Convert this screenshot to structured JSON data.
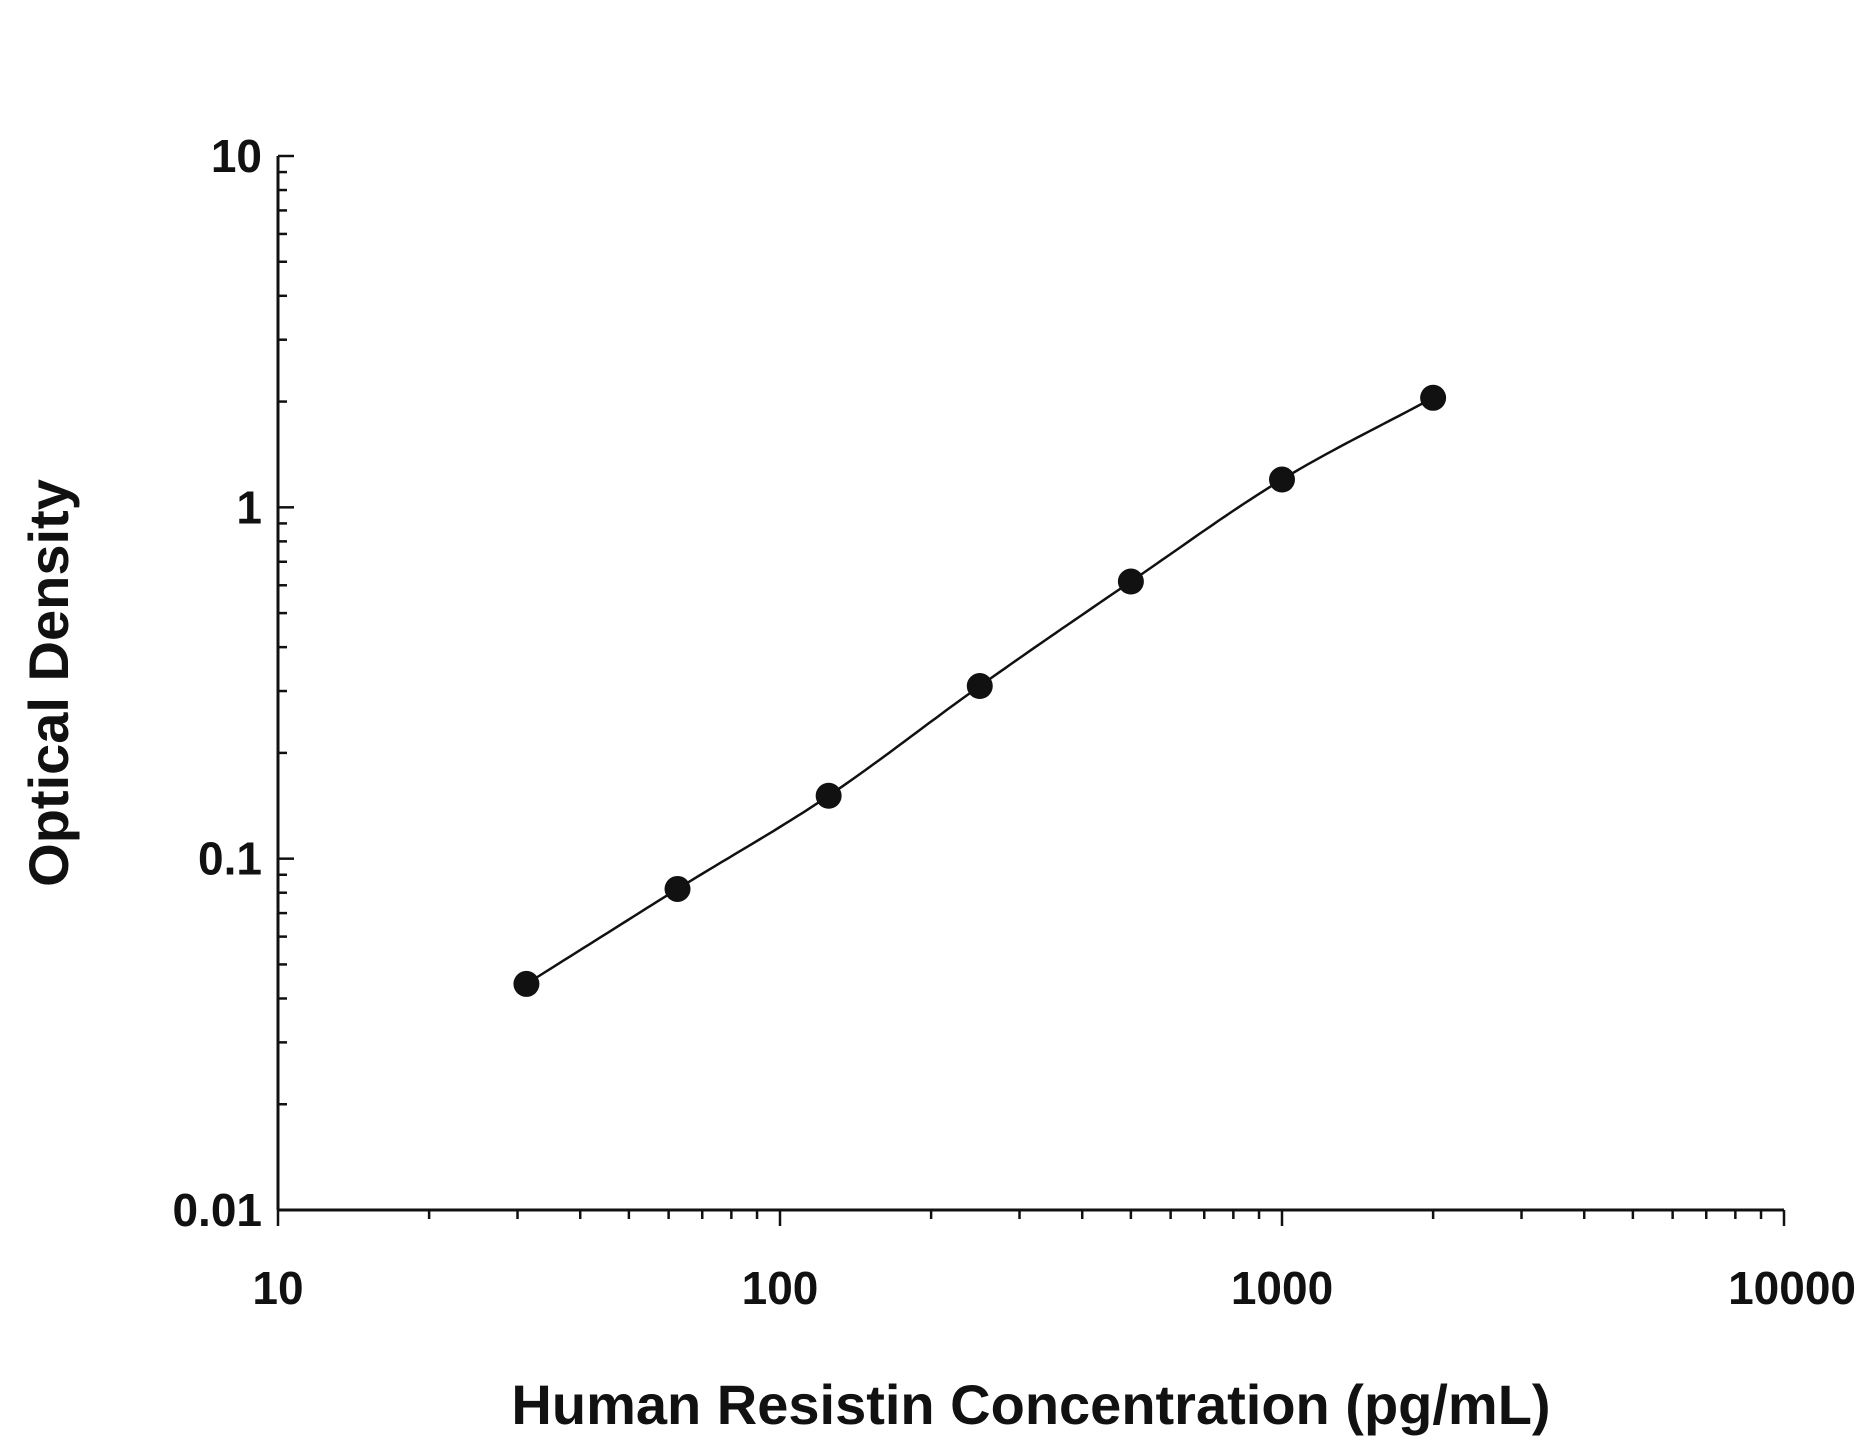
{
  "chart_data": {
    "type": "scatter",
    "xlabel": "Human Resistin Concentration (pg/mL)",
    "ylabel": "Optical Density",
    "x_scale": "log",
    "y_scale": "log",
    "xlim": [
      10,
      10000
    ],
    "ylim": [
      0.01,
      10
    ],
    "x_ticks": [
      {
        "value": 10,
        "label": "10"
      },
      {
        "value": 100,
        "label": "100"
      },
      {
        "value": 1000,
        "label": "1000"
      },
      {
        "value": 10000,
        "label": "10000"
      }
    ],
    "y_ticks": [
      {
        "value": 0.01,
        "label": "0.01"
      },
      {
        "value": 0.1,
        "label": "0.1"
      },
      {
        "value": 1,
        "label": "1"
      },
      {
        "value": 10,
        "label": "10"
      }
    ],
    "grid": false,
    "series": [
      {
        "x": [
          31.25,
          62.5,
          125,
          250,
          500,
          1000,
          2000
        ],
        "y": [
          0.044,
          0.082,
          0.151,
          0.31,
          0.615,
          1.2,
          2.05
        ]
      }
    ],
    "fit_curve": "smooth fit through points",
    "colors": {
      "marks": "#111111",
      "background": "#ffffff"
    }
  }
}
